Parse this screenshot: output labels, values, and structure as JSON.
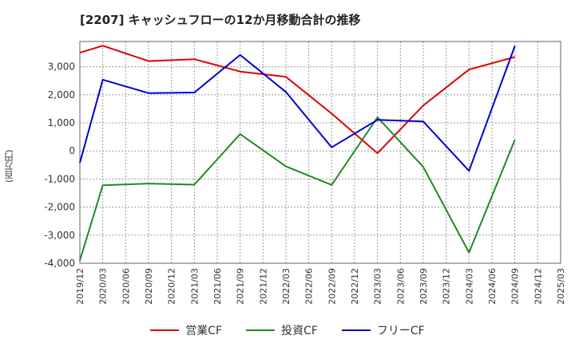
{
  "chart_data": {
    "type": "line",
    "title": "[2207]  キャッシュフローの12か月移動合計の推移",
    "ylabel": "(百万円)",
    "xlabel": "",
    "ylim": [
      -4000,
      3900
    ],
    "yticks": [
      3000,
      2000,
      1000,
      0,
      -1000,
      -2000,
      -3000,
      -4000
    ],
    "ytick_labels": [
      "3,000",
      "2,000",
      "1,000",
      "0",
      "-1,000",
      "-2,000",
      "-3,000",
      "-4,000"
    ],
    "categories": [
      "2019/12",
      "2020/03",
      "2020/06",
      "2020/09",
      "2020/12",
      "2021/03",
      "2021/06",
      "2021/09",
      "2021/12",
      "2022/03",
      "2022/06",
      "2022/09",
      "2022/12",
      "2023/03",
      "2023/06",
      "2023/09",
      "2023/12",
      "2024/03",
      "2024/06",
      "2024/09",
      "2024/12",
      "2025/03"
    ],
    "grid": true,
    "legend_position": "bottom",
    "series": [
      {
        "name": "営業CF",
        "color": "#dd0000",
        "values": [
          3500,
          3750,
          null,
          3200,
          null,
          3270,
          null,
          2830,
          null,
          2640,
          null,
          1330,
          null,
          -80,
          null,
          1620,
          null,
          2900,
          null,
          3350,
          null,
          null
        ]
      },
      {
        "name": "投資CF",
        "color": "#228822",
        "values": [
          -3900,
          -1220,
          null,
          -1160,
          null,
          -1200,
          null,
          600,
          null,
          -550,
          null,
          -1210,
          null,
          1200,
          null,
          -570,
          null,
          -3620,
          null,
          400,
          null,
          null
        ]
      },
      {
        "name": "フリーCF",
        "color": "#0000cc",
        "values": [
          -420,
          2540,
          null,
          2060,
          null,
          2080,
          null,
          3420,
          null,
          2100,
          null,
          130,
          null,
          1110,
          null,
          1050,
          null,
          -710,
          null,
          3740,
          null,
          null
        ]
      }
    ]
  }
}
